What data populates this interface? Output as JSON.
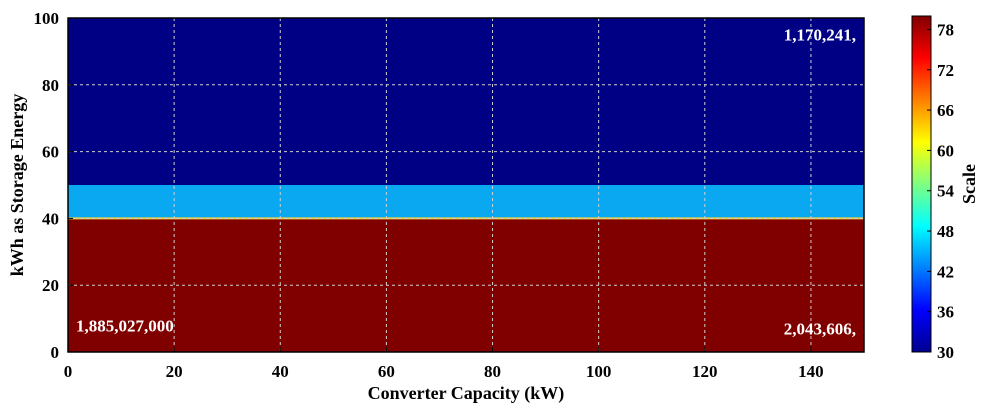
{
  "chart_data": {
    "type": "heatmap",
    "xlabel": "Converter Capacity (kW)",
    "ylabel": "kWh as Storage Energy",
    "xlim": [
      0,
      150
    ],
    "ylim": [
      0,
      100
    ],
    "x_ticks": [
      "0",
      "20",
      "40",
      "60",
      "80",
      "100",
      "120",
      "140"
    ],
    "y_ticks": [
      "0",
      "20",
      "40",
      "60",
      "80",
      "100"
    ],
    "grid": true,
    "bands": [
      {
        "y_from": 0,
        "y_to": 40,
        "value": 80,
        "color": "#800000"
      },
      {
        "y_from": 40,
        "y_to": 50,
        "value": 45,
        "color": "#0aa8f0"
      },
      {
        "y_from": 50,
        "y_to": 100,
        "value": 30,
        "color": "#000085"
      }
    ],
    "boundary_line": {
      "y": 40,
      "color": "#f4d02c"
    },
    "annotations": [
      {
        "text": "1,170,241,",
        "x": 150,
        "y": 95,
        "anchor": "end"
      },
      {
        "text": "1,885,027,000",
        "x": 0,
        "y": 8,
        "anchor": "start"
      },
      {
        "text": "2,043,606,",
        "x": 150,
        "y": 7,
        "anchor": "end"
      }
    ],
    "colorbar": {
      "label": "Scale",
      "min": 30,
      "max": 80,
      "ticks": [
        "30",
        "36",
        "42",
        "48",
        "54",
        "60",
        "66",
        "72",
        "78"
      ],
      "stops": [
        "#00008f",
        "#0000ff",
        "#0080ff",
        "#00ffff",
        "#80ff80",
        "#ffff00",
        "#ff8000",
        "#ff0000",
        "#800000"
      ]
    }
  }
}
